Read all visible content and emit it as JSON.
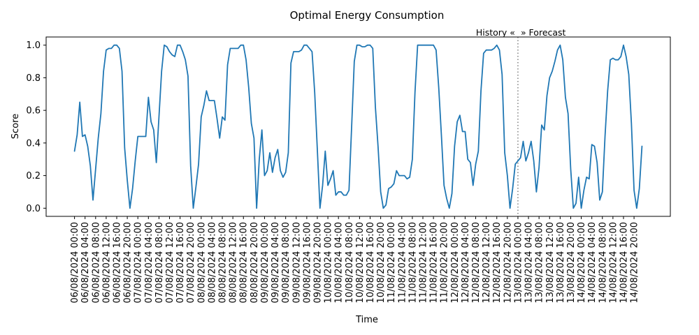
{
  "chart_data": {
    "type": "line",
    "title": "Optimal Energy Consumption",
    "xlabel": "Time",
    "ylabel": "Score",
    "ylim": [
      -0.05,
      1.05
    ],
    "y_ticks": [
      0.0,
      0.2,
      0.4,
      0.6,
      0.8,
      1.0
    ],
    "y_tick_labels": [
      "0.0",
      "0.2",
      "0.4",
      "0.6",
      "0.8",
      "1.0"
    ],
    "x_ticks": [
      "2024-08-06T00:00",
      "2024-08-06T04:00",
      "2024-08-06T08:00",
      "2024-08-06T12:00",
      "2024-08-06T16:00",
      "2024-08-06T20:00",
      "2024-08-07T00:00",
      "2024-08-07T04:00",
      "2024-08-07T08:00",
      "2024-08-07T12:00",
      "2024-08-07T16:00",
      "2024-08-07T20:00",
      "2024-08-08T00:00",
      "2024-08-08T04:00",
      "2024-08-08T08:00",
      "2024-08-08T12:00",
      "2024-08-08T16:00",
      "2024-08-08T20:00",
      "2024-08-09T00:00",
      "2024-08-09T04:00",
      "2024-08-09T08:00",
      "2024-08-09T12:00",
      "2024-08-09T16:00",
      "2024-08-09T20:00",
      "2024-08-10T00:00",
      "2024-08-10T04:00",
      "2024-08-10T08:00",
      "2024-08-10T12:00",
      "2024-08-10T16:00",
      "2024-08-10T20:00",
      "2024-08-11T00:00",
      "2024-08-11T04:00",
      "2024-08-11T08:00",
      "2024-08-11T12:00",
      "2024-08-11T16:00",
      "2024-08-11T20:00",
      "2024-08-12T00:00",
      "2024-08-12T04:00",
      "2024-08-12T08:00",
      "2024-08-12T12:00",
      "2024-08-12T16:00",
      "2024-08-12T20:00",
      "2024-08-13T00:00",
      "2024-08-13T04:00",
      "2024-08-13T08:00",
      "2024-08-13T12:00",
      "2024-08-13T16:00",
      "2024-08-13T20:00",
      "2024-08-14T00:00",
      "2024-08-14T04:00",
      "2024-08-14T08:00",
      "2024-08-14T12:00",
      "2024-08-14T16:00",
      "2024-08-14T20:00"
    ],
    "x_tick_labels": [
      "06/08/2024 00:00",
      "06/08/2024 04:00",
      "06/08/2024 08:00",
      "06/08/2024 12:00",
      "06/08/2024 16:00",
      "06/08/2024 20:00",
      "07/08/2024 00:00",
      "07/08/2024 04:00",
      "07/08/2024 08:00",
      "07/08/2024 12:00",
      "07/08/2024 16:00",
      "07/08/2024 20:00",
      "08/08/2024 00:00",
      "08/08/2024 04:00",
      "08/08/2024 08:00",
      "08/08/2024 12:00",
      "08/08/2024 16:00",
      "08/08/2024 20:00",
      "09/08/2024 00:00",
      "09/08/2024 04:00",
      "09/08/2024 08:00",
      "09/08/2024 12:00",
      "09/08/2024 16:00",
      "09/08/2024 20:00",
      "10/08/2024 00:00",
      "10/08/2024 04:00",
      "10/08/2024 08:00",
      "10/08/2024 12:00",
      "10/08/2024 16:00",
      "10/08/2024 20:00",
      "11/08/2024 00:00",
      "11/08/2024 04:00",
      "11/08/2024 08:00",
      "11/08/2024 12:00",
      "11/08/2024 16:00",
      "11/08/2024 20:00",
      "12/08/2024 00:00",
      "12/08/2024 04:00",
      "12/08/2024 08:00",
      "12/08/2024 12:00",
      "12/08/2024 16:00",
      "12/08/2024 20:00",
      "13/08/2024 00:00",
      "13/08/2024 04:00",
      "13/08/2024 08:00",
      "13/08/2024 12:00",
      "13/08/2024 16:00",
      "13/08/2024 20:00",
      "14/08/2024 00:00",
      "14/08/2024 04:00",
      "14/08/2024 08:00",
      "14/08/2024 12:00",
      "14/08/2024 16:00",
      "14/08/2024 20:00"
    ],
    "x": [
      "2024-08-06T00:00",
      "2024-08-06T01:00",
      "2024-08-06T02:00",
      "2024-08-06T03:00",
      "2024-08-06T04:00",
      "2024-08-06T05:00",
      "2024-08-06T06:00",
      "2024-08-06T07:00",
      "2024-08-06T08:00",
      "2024-08-06T09:00",
      "2024-08-06T10:00",
      "2024-08-06T11:00",
      "2024-08-06T12:00",
      "2024-08-06T13:00",
      "2024-08-06T14:00",
      "2024-08-06T15:00",
      "2024-08-06T16:00",
      "2024-08-06T17:00",
      "2024-08-06T18:00",
      "2024-08-06T19:00",
      "2024-08-06T20:00",
      "2024-08-06T21:00",
      "2024-08-06T22:00",
      "2024-08-06T23:00",
      "2024-08-07T00:00",
      "2024-08-07T01:00",
      "2024-08-07T02:00",
      "2024-08-07T03:00",
      "2024-08-07T04:00",
      "2024-08-07T05:00",
      "2024-08-07T06:00",
      "2024-08-07T07:00",
      "2024-08-07T08:00",
      "2024-08-07T09:00",
      "2024-08-07T10:00",
      "2024-08-07T11:00",
      "2024-08-07T12:00",
      "2024-08-07T13:00",
      "2024-08-07T14:00",
      "2024-08-07T15:00",
      "2024-08-07T16:00",
      "2024-08-07T17:00",
      "2024-08-07T18:00",
      "2024-08-07T19:00",
      "2024-08-07T20:00",
      "2024-08-07T21:00",
      "2024-08-07T22:00",
      "2024-08-07T23:00",
      "2024-08-08T00:00",
      "2024-08-08T01:00",
      "2024-08-08T02:00",
      "2024-08-08T03:00",
      "2024-08-08T04:00",
      "2024-08-08T05:00",
      "2024-08-08T06:00",
      "2024-08-08T07:00",
      "2024-08-08T08:00",
      "2024-08-08T09:00",
      "2024-08-08T10:00",
      "2024-08-08T11:00",
      "2024-08-08T12:00",
      "2024-08-08T13:00",
      "2024-08-08T14:00",
      "2024-08-08T15:00",
      "2024-08-08T16:00",
      "2024-08-08T17:00",
      "2024-08-08T18:00",
      "2024-08-08T19:00",
      "2024-08-08T20:00",
      "2024-08-08T21:00",
      "2024-08-08T22:00",
      "2024-08-08T23:00",
      "2024-08-09T00:00",
      "2024-08-09T01:00",
      "2024-08-09T02:00",
      "2024-08-09T03:00",
      "2024-08-09T04:00",
      "2024-08-09T05:00",
      "2024-08-09T06:00",
      "2024-08-09T07:00",
      "2024-08-09T08:00",
      "2024-08-09T09:00",
      "2024-08-09T10:00",
      "2024-08-09T11:00",
      "2024-08-09T12:00",
      "2024-08-09T13:00",
      "2024-08-09T14:00",
      "2024-08-09T15:00",
      "2024-08-09T16:00",
      "2024-08-09T17:00",
      "2024-08-09T18:00",
      "2024-08-09T19:00",
      "2024-08-09T20:00",
      "2024-08-09T21:00",
      "2024-08-09T22:00",
      "2024-08-09T23:00",
      "2024-08-10T00:00",
      "2024-08-10T01:00",
      "2024-08-10T02:00",
      "2024-08-10T03:00",
      "2024-08-10T04:00",
      "2024-08-10T05:00",
      "2024-08-10T06:00",
      "2024-08-10T07:00",
      "2024-08-10T08:00",
      "2024-08-10T09:00",
      "2024-08-10T10:00",
      "2024-08-10T11:00",
      "2024-08-10T12:00",
      "2024-08-10T13:00",
      "2024-08-10T14:00",
      "2024-08-10T15:00",
      "2024-08-10T16:00",
      "2024-08-10T17:00",
      "2024-08-10T18:00",
      "2024-08-10T19:00",
      "2024-08-10T20:00",
      "2024-08-10T21:00",
      "2024-08-10T22:00",
      "2024-08-10T23:00",
      "2024-08-11T00:00",
      "2024-08-11T01:00",
      "2024-08-11T02:00",
      "2024-08-11T03:00",
      "2024-08-11T04:00",
      "2024-08-11T05:00",
      "2024-08-11T06:00",
      "2024-08-11T07:00",
      "2024-08-11T08:00",
      "2024-08-11T09:00",
      "2024-08-11T10:00",
      "2024-08-11T11:00",
      "2024-08-11T12:00",
      "2024-08-11T13:00",
      "2024-08-11T14:00",
      "2024-08-11T15:00",
      "2024-08-11T16:00",
      "2024-08-11T17:00",
      "2024-08-11T18:00",
      "2024-08-11T19:00",
      "2024-08-11T20:00",
      "2024-08-11T21:00",
      "2024-08-11T22:00",
      "2024-08-11T23:00",
      "2024-08-12T00:00",
      "2024-08-12T01:00",
      "2024-08-12T02:00",
      "2024-08-12T03:00",
      "2024-08-12T04:00",
      "2024-08-12T05:00",
      "2024-08-12T06:00",
      "2024-08-12T07:00",
      "2024-08-12T08:00",
      "2024-08-12T09:00",
      "2024-08-12T10:00",
      "2024-08-12T11:00",
      "2024-08-12T12:00",
      "2024-08-12T13:00",
      "2024-08-12T14:00",
      "2024-08-12T15:00",
      "2024-08-12T16:00",
      "2024-08-12T17:00",
      "2024-08-12T18:00",
      "2024-08-12T19:00",
      "2024-08-12T20:00",
      "2024-08-12T21:00",
      "2024-08-12T22:00",
      "2024-08-12T23:00",
      "2024-08-13T00:00",
      "2024-08-13T01:00",
      "2024-08-13T02:00",
      "2024-08-13T03:00",
      "2024-08-13T04:00",
      "2024-08-13T05:00",
      "2024-08-13T06:00",
      "2024-08-13T07:00",
      "2024-08-13T08:00",
      "2024-08-13T09:00",
      "2024-08-13T10:00",
      "2024-08-13T11:00",
      "2024-08-13T12:00",
      "2024-08-13T13:00",
      "2024-08-13T14:00",
      "2024-08-13T15:00",
      "2024-08-13T16:00",
      "2024-08-13T17:00",
      "2024-08-13T18:00",
      "2024-08-13T19:00",
      "2024-08-13T20:00",
      "2024-08-13T21:00",
      "2024-08-13T22:00",
      "2024-08-13T23:00",
      "2024-08-14T00:00",
      "2024-08-14T01:00",
      "2024-08-14T02:00",
      "2024-08-14T03:00",
      "2024-08-14T04:00",
      "2024-08-14T05:00",
      "2024-08-14T06:00",
      "2024-08-14T07:00",
      "2024-08-14T08:00",
      "2024-08-14T09:00",
      "2024-08-14T10:00",
      "2024-08-14T11:00",
      "2024-08-14T12:00",
      "2024-08-14T13:00",
      "2024-08-14T14:00",
      "2024-08-14T15:00",
      "2024-08-14T16:00",
      "2024-08-14T17:00",
      "2024-08-14T18:00",
      "2024-08-14T19:00",
      "2024-08-14T20:00",
      "2024-08-14T21:00",
      "2024-08-14T22:00",
      "2024-08-14T23:00"
    ],
    "y": [
      0.35,
      0.45,
      0.65,
      0.44,
      0.45,
      0.38,
      0.26,
      0.05,
      0.24,
      0.43,
      0.58,
      0.84,
      0.97,
      0.98,
      0.98,
      1.0,
      1.0,
      0.98,
      0.84,
      0.37,
      0.17,
      0.0,
      0.12,
      0.29,
      0.44,
      0.44,
      0.44,
      0.44,
      0.68,
      0.53,
      0.48,
      0.28,
      0.56,
      0.84,
      1.0,
      0.99,
      0.96,
      0.94,
      0.93,
      1.0,
      1.0,
      0.96,
      0.91,
      0.81,
      0.26,
      0.0,
      0.13,
      0.27,
      0.56,
      0.63,
      0.72,
      0.66,
      0.66,
      0.66,
      0.55,
      0.43,
      0.56,
      0.54,
      0.88,
      0.98,
      0.98,
      0.98,
      0.98,
      1.0,
      1.0,
      0.91,
      0.74,
      0.52,
      0.43,
      0.0,
      0.3,
      0.48,
      0.2,
      0.23,
      0.34,
      0.22,
      0.31,
      0.36,
      0.23,
      0.19,
      0.22,
      0.34,
      0.89,
      0.96,
      0.96,
      0.96,
      0.97,
      1.0,
      1.0,
      0.98,
      0.96,
      0.71,
      0.36,
      0.0,
      0.14,
      0.35,
      0.14,
      0.18,
      0.23,
      0.08,
      0.1,
      0.1,
      0.08,
      0.08,
      0.11,
      0.5,
      0.9,
      1.0,
      1.0,
      0.99,
      0.99,
      1.0,
      1.0,
      0.98,
      0.62,
      0.38,
      0.1,
      0.0,
      0.02,
      0.12,
      0.13,
      0.15,
      0.23,
      0.2,
      0.2,
      0.2,
      0.18,
      0.19,
      0.3,
      0.71,
      1.0,
      1.0,
      1.0,
      1.0,
      1.0,
      1.0,
      1.0,
      0.97,
      0.74,
      0.45,
      0.14,
      0.06,
      0.0,
      0.09,
      0.38,
      0.53,
      0.57,
      0.47,
      0.47,
      0.3,
      0.28,
      0.14,
      0.27,
      0.35,
      0.72,
      0.95,
      0.97,
      0.97,
      0.97,
      0.98,
      1.0,
      0.97,
      0.82,
      0.34,
      0.2,
      0.0,
      0.12,
      0.27,
      0.29,
      0.31,
      0.41,
      0.29,
      0.34,
      0.41,
      0.29,
      0.1,
      0.25,
      0.51,
      0.48,
      0.69,
      0.8,
      0.84,
      0.9,
      0.97,
      1.0,
      0.91,
      0.68,
      0.58,
      0.24,
      0.0,
      0.03,
      0.19,
      0.0,
      0.11,
      0.19,
      0.18,
      0.39,
      0.38,
      0.28,
      0.05,
      0.1,
      0.44,
      0.72,
      0.91,
      0.92,
      0.91,
      0.91,
      0.93,
      1.0,
      0.93,
      0.82,
      0.52,
      0.11,
      0.0,
      0.12,
      0.38
    ],
    "series_color": "#1f77b4",
    "divider": {
      "x": "2024-08-13T00:00",
      "style": "dotted",
      "color": "#808080",
      "label_left": "History «",
      "label_right": "» Forecast"
    },
    "grid": false,
    "legend": "none"
  }
}
